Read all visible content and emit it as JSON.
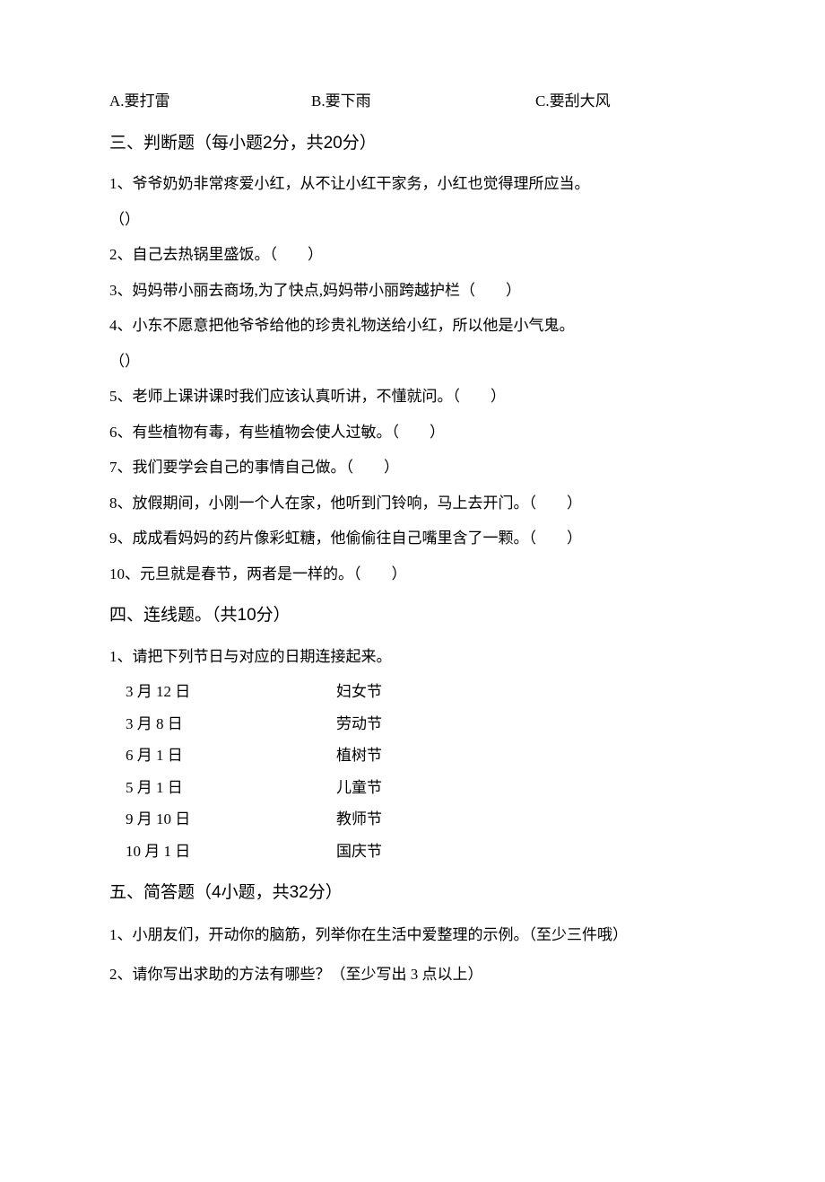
{
  "options": {
    "a": "A.要打雷",
    "b": "B.要下雨",
    "c": "C.要刮大风"
  },
  "section3": {
    "heading_pre": "三、判断题（每小题",
    "heading_mid1": "2",
    "heading_mid2": "分，共",
    "heading_mid3": "20",
    "heading_post": "分）",
    "q1a": "1、爷爷奶奶非常疼爱小红，从不让小红干家务，小红也觉得理所应当。",
    "q1b": "（）",
    "q2": "2、自己去热锅里盛饭。（  ）",
    "q3": "3、妈妈带小丽去商场,为了快点,妈妈带小丽跨越护栏（  ）",
    "q4a": "4、小东不愿意把他爷爷给他的珍贵礼物送给小红，所以他是小气鬼。",
    "q4b": "（）",
    "q5": "5、老师上课讲课时我们应该认真听讲，不懂就问。（  ）",
    "q6": "6、有些植物有毒，有些植物会使人过敏。（  ）",
    "q7": "7、我们要学会自己的事情自己做。（  ）",
    "q8": "8、放假期间，小刚一个人在家，他听到门铃响，马上去开门。（  ）",
    "q9": "9、成成看妈妈的药片像彩虹糖，他偷偷往自己嘴里含了一颗。（  ）",
    "q10": "10、元旦就是春节，两者是一样的。（  ）"
  },
  "section4": {
    "heading_pre": "四、连线题。（共",
    "heading_num": "10",
    "heading_post": "分）",
    "intro": "1、请把下列节日与对应的日期连接起来。",
    "rows": [
      {
        "left": "3 月 12 日",
        "right": "妇女节"
      },
      {
        "left": "3 月 8 日",
        "right": "劳动节"
      },
      {
        "left": "6 月 1 日",
        "right": "植树节"
      },
      {
        "left": "5 月 1 日",
        "right": "儿童节"
      },
      {
        "left": "9 月 10 日",
        "right": "教师节"
      },
      {
        "left": "10 月 1 日",
        "right": "国庆节"
      }
    ]
  },
  "section5": {
    "heading_pre": "五、简答题（",
    "heading_n1": "4",
    "heading_mid": "小题，共",
    "heading_n2": "32",
    "heading_post": "分）",
    "q1": "1、小朋友们，开动你的脑筋，列举你在生活中爱整理的示例。（至少三件哦）",
    "q2": "2、请你写出求助的方法有哪些？（至少写出 3 点以上）"
  }
}
